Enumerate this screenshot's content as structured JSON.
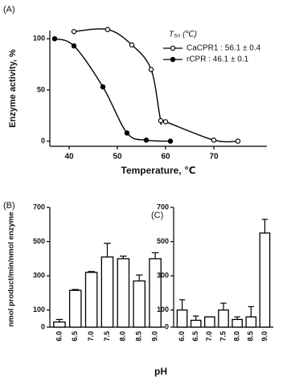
{
  "chart_data": [
    {
      "type": "line",
      "panel_label": "(A)",
      "xlabel": "Temperature, ℃",
      "ylabel": "Enzyme activity, %",
      "xlim": [
        36,
        81
      ],
      "xticks": [
        40,
        50,
        60,
        70
      ],
      "ylim": [
        -5,
        108
      ],
      "yticks": [
        0,
        50,
        100
      ],
      "legend_title": "T₅₀ (℃)",
      "legend": "upper right",
      "series": [
        {
          "name": "CaCPR1 : 56.1 ± 0.4",
          "color": "#000000",
          "marker": "open",
          "x": [
            41,
            48,
            53,
            57,
            59,
            60,
            70,
            75
          ],
          "values": [
            107,
            109,
            94,
            70,
            20,
            19,
            1,
            0
          ]
        },
        {
          "name": "rCPR : 46.1 ± 0.1",
          "color": "#000000",
          "marker": "filled",
          "x": [
            37,
            41,
            47,
            52,
            56,
            61
          ],
          "values": [
            100,
            93,
            53,
            8,
            1,
            0
          ]
        }
      ]
    },
    {
      "type": "bar",
      "panel_label": "(B)",
      "ylabel": "nmol product/min/nmol enzyme",
      "xlabel": "pH",
      "categories": [
        "6.0",
        "6.5",
        "7.0",
        "7.5",
        "8.0",
        "8.5",
        "9.0"
      ],
      "values": [
        30,
        215,
        320,
        410,
        400,
        270,
        400
      ],
      "errors": [
        15,
        5,
        5,
        80,
        15,
        35,
        35
      ],
      "color": "#ffffff",
      "edgecolor": "#000000",
      "ylim": [
        0,
        700
      ],
      "yticks": [
        0,
        100,
        300,
        500,
        700
      ]
    },
    {
      "type": "bar",
      "panel_label": "(C)",
      "categories": [
        "6.0",
        "6.5",
        "7.0",
        "7.5",
        "8.0",
        "8.5",
        "9.0"
      ],
      "values": [
        100,
        40,
        60,
        100,
        45,
        60,
        550
      ],
      "errors": [
        60,
        25,
        0,
        40,
        15,
        60,
        80
      ],
      "color": "#ffffff",
      "edgecolor": "#000000",
      "ylim": [
        0,
        700
      ],
      "yticks": [
        0,
        100,
        300,
        500,
        700
      ]
    }
  ]
}
